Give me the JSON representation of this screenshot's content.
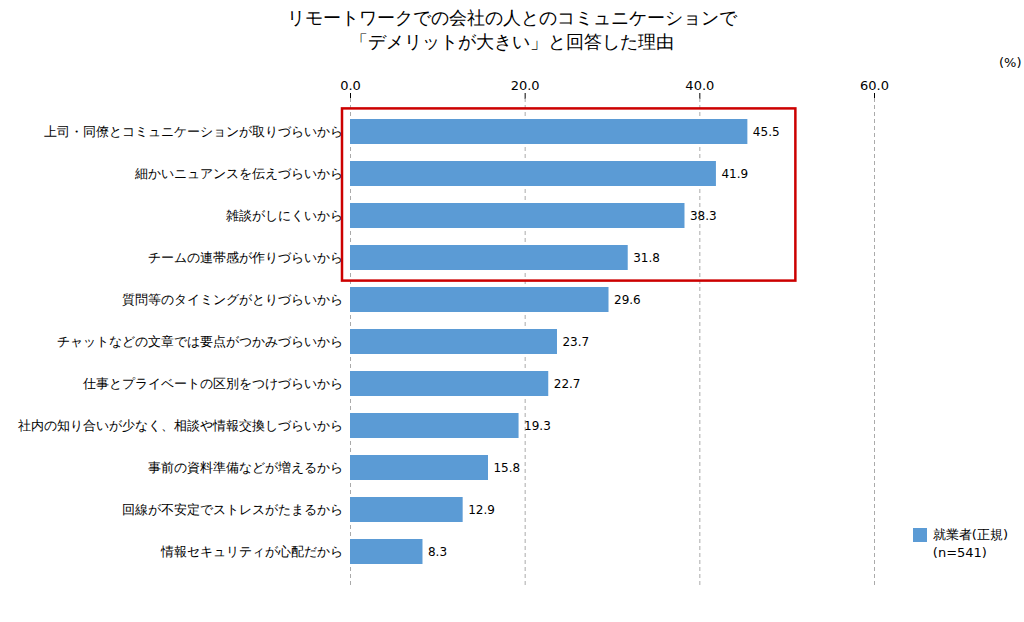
{
  "chart_data": {
    "type": "bar",
    "orientation": "horizontal",
    "title": "リモートワークでの会社の人とのコミュニケーションで",
    "subtitle": "「デメリットが大きい」と回答した理由",
    "xlabel": "(%)",
    "categories": [
      "上司・同僚とコミュニケーションが取りづらいから",
      "細かいニュアンスを伝えづらいから",
      "雑談がしにくいから",
      "チームの連帯感が作りづらいから",
      "質問等のタイミングがとりづらいから",
      "チャットなどの文章では要点がつかみづらいから",
      "仕事とプライベートの区別をつけづらいから",
      "社内の知り合いが少なく、相談や情報交換しづらいから",
      "事前の資料準備などが増えるから",
      "回線が不安定でストレスがたまるから",
      "情報セキュリティが心配だから"
    ],
    "series": [
      {
        "name": "就業者(正規)\n(n=541)",
        "color": "#5B9BD5",
        "values": [
          45.5,
          41.9,
          38.3,
          31.8,
          29.6,
          23.7,
          22.7,
          19.3,
          15.8,
          12.9,
          8.3
        ]
      }
    ],
    "xlim": [
      0,
      60
    ],
    "xticks": [
      {
        "value": 0,
        "label": "0.0"
      },
      {
        "value": 20,
        "label": "20.0"
      },
      {
        "value": 40,
        "label": "40.0"
      },
      {
        "value": 60,
        "label": "60.0"
      }
    ],
    "grid": true,
    "data_labels": true,
    "legend": "bottom right",
    "highlight": {
      "count": 4,
      "color": "#CC0000"
    }
  }
}
